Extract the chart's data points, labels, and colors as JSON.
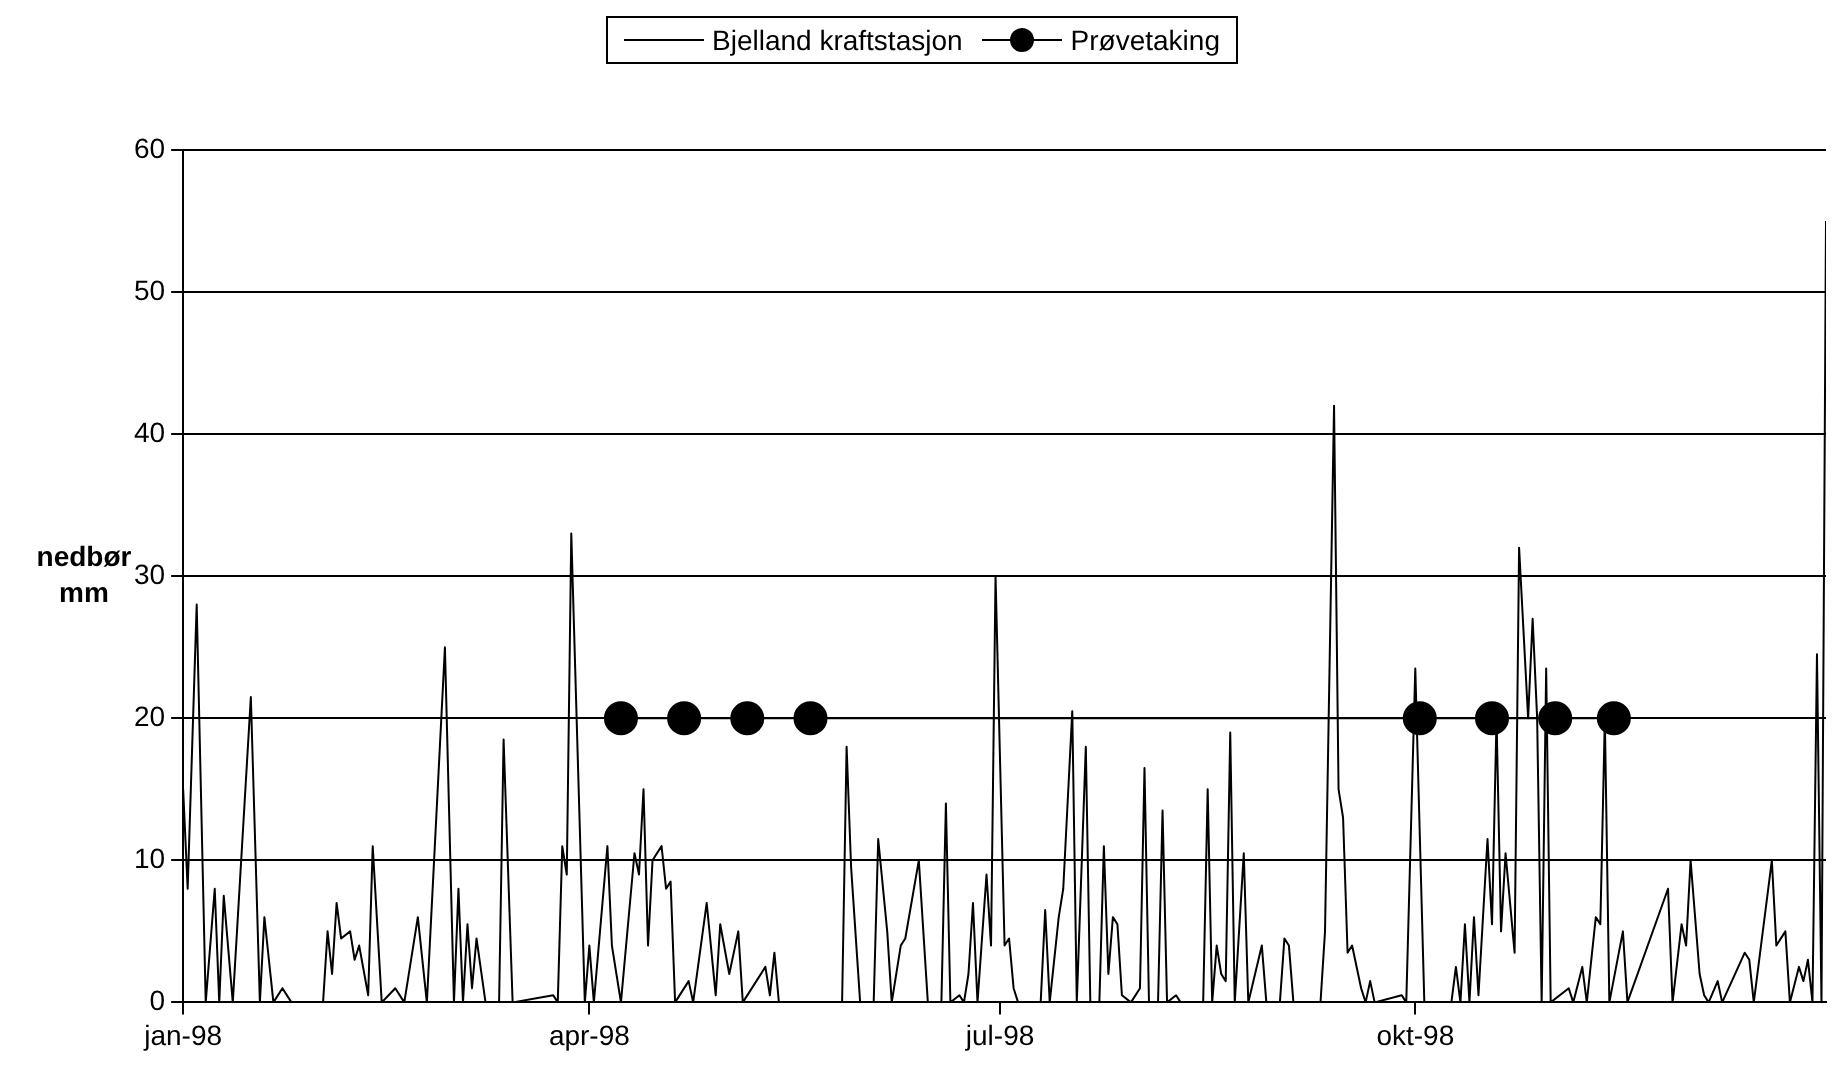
{
  "chart_data": {
    "type": "line",
    "ylabel": "nedbør mm",
    "xlim": [
      "1998-01-01",
      "1998-12-31"
    ],
    "xticks": [
      {
        "value": "1998-01-01",
        "label": "jan-98"
      },
      {
        "value": "1998-04-01",
        "label": "apr-98"
      },
      {
        "value": "1998-07-01",
        "label": "jul-98"
      },
      {
        "value": "1998-10-01",
        "label": "okt-98"
      }
    ],
    "ylim": [
      0,
      60
    ],
    "yticks": [
      0,
      10,
      20,
      30,
      40,
      50,
      60
    ],
    "grid": "y",
    "legend": "top",
    "series": [
      {
        "name": "Bjelland kraftstasjon",
        "color": "#000000",
        "marker": "none",
        "x": [
          "1998-01-01",
          "1998-01-02",
          "1998-01-04",
          "1998-01-06",
          "1998-01-08",
          "1998-01-09",
          "1998-01-10",
          "1998-01-12",
          "1998-01-16",
          "1998-01-18",
          "1998-01-19",
          "1998-01-21",
          "1998-01-23",
          "1998-01-25",
          "1998-02-01",
          "1998-02-02",
          "1998-02-03",
          "1998-02-04",
          "1998-02-05",
          "1998-02-07",
          "1998-02-08",
          "1998-02-09",
          "1998-02-11",
          "1998-02-12",
          "1998-02-14",
          "1998-02-17",
          "1998-02-19",
          "1998-02-22",
          "1998-02-24",
          "1998-02-28",
          "1998-03-02",
          "1998-03-03",
          "1998-03-04",
          "1998-03-05",
          "1998-03-06",
          "1998-03-07",
          "1998-03-09",
          "1998-03-12",
          "1998-03-13",
          "1998-03-15",
          "1998-03-24",
          "1998-03-25",
          "1998-03-26",
          "1998-03-27",
          "1998-03-28",
          "1998-03-31",
          "1998-04-01",
          "1998-04-02",
          "1998-04-05",
          "1998-04-06",
          "1998-04-07",
          "1998-04-08",
          "1998-04-11",
          "1998-04-12",
          "1998-04-13",
          "1998-04-14",
          "1998-04-15",
          "1998-04-17",
          "1998-04-18",
          "1998-04-19",
          "1998-04-20",
          "1998-04-23",
          "1998-04-24",
          "1998-04-27",
          "1998-04-29",
          "1998-04-30",
          "1998-05-02",
          "1998-05-04",
          "1998-05-05",
          "1998-05-10",
          "1998-05-11",
          "1998-05-12",
          "1998-05-13",
          "1998-05-27",
          "1998-05-28",
          "1998-05-29",
          "1998-05-31",
          "1998-06-03",
          "1998-06-04",
          "1998-06-06",
          "1998-06-07",
          "1998-06-09",
          "1998-06-10",
          "1998-06-13",
          "1998-06-15",
          "1998-06-18",
          "1998-06-19",
          "1998-06-20",
          "1998-06-22",
          "1998-06-23",
          "1998-06-24",
          "1998-06-25",
          "1998-06-26",
          "1998-06-28",
          "1998-06-29",
          "1998-06-30",
          "1998-07-02",
          "1998-07-03",
          "1998-07-04",
          "1998-07-05",
          "1998-07-10",
          "1998-07-11",
          "1998-07-12",
          "1998-07-14",
          "1998-07-15",
          "1998-07-17",
          "1998-07-18",
          "1998-07-20",
          "1998-07-21",
          "1998-07-23",
          "1998-07-24",
          "1998-07-25",
          "1998-07-26",
          "1998-07-27",
          "1998-07-28",
          "1998-07-30",
          "1998-08-01",
          "1998-08-02",
          "1998-08-03",
          "1998-08-05",
          "1998-08-06",
          "1998-08-07",
          "1998-08-09",
          "1998-08-10",
          "1998-08-15",
          "1998-08-16",
          "1998-08-17",
          "1998-08-18",
          "1998-08-19",
          "1998-08-20",
          "1998-08-21",
          "1998-08-22",
          "1998-08-24",
          "1998-08-25",
          "1998-08-28",
          "1998-08-29",
          "1998-09-01",
          "1998-09-02",
          "1998-09-03",
          "1998-09-04",
          "1998-09-10",
          "1998-09-11",
          "1998-09-13",
          "1998-09-14",
          "1998-09-15",
          "1998-09-16",
          "1998-09-17",
          "1998-09-19",
          "1998-09-20",
          "1998-09-21",
          "1998-09-22",
          "1998-09-28",
          "1998-09-29",
          "1998-10-01",
          "1998-10-03",
          "1998-10-09",
          "1998-10-10",
          "1998-10-11",
          "1998-10-12",
          "1998-10-13",
          "1998-10-14",
          "1998-10-15",
          "1998-10-17",
          "1998-10-18",
          "1998-10-19",
          "1998-10-20",
          "1998-10-21",
          "1998-10-23",
          "1998-10-24",
          "1998-10-26",
          "1998-10-27",
          "1998-10-28",
          "1998-10-29",
          "1998-10-30",
          "1998-10-31",
          "1998-11-04",
          "1998-11-05",
          "1998-11-07",
          "1998-11-08",
          "1998-11-10",
          "1998-11-11",
          "1998-11-12",
          "1998-11-13",
          "1998-11-16",
          "1998-11-17",
          "1998-11-26",
          "1998-11-27",
          "1998-11-29",
          "1998-11-30",
          "1998-12-01",
          "1998-12-03",
          "1998-12-04",
          "1998-12-05",
          "1998-12-07",
          "1998-12-08",
          "1998-12-13",
          "1998-12-14",
          "1998-12-15",
          "1998-12-19",
          "1998-12-20",
          "1998-12-22",
          "1998-12-23",
          "1998-12-25",
          "1998-12-26",
          "1998-12-27",
          "1998-12-28",
          "1998-12-29",
          "1998-12-30",
          "1998-12-31"
        ],
        "values": [
          15,
          8,
          28,
          0,
          8,
          0,
          7.5,
          0,
          21.5,
          0,
          6,
          0,
          1,
          0,
          0,
          5,
          2,
          7,
          4.5,
          5,
          3,
          4,
          0.5,
          11,
          0,
          1,
          0,
          6,
          0,
          25,
          0,
          8,
          0,
          5.5,
          1,
          4.5,
          0,
          0,
          18.5,
          0,
          0.5,
          0,
          11,
          9,
          33,
          0,
          4,
          0,
          11,
          4,
          2,
          0,
          10.5,
          9,
          15,
          4,
          10,
          11,
          8,
          8.5,
          0,
          1.5,
          0,
          7,
          0.5,
          5.5,
          2,
          5,
          0,
          2.5,
          0.5,
          3.5,
          0,
          0,
          18,
          9.5,
          0,
          0,
          11.5,
          5,
          0,
          4,
          4.5,
          10,
          0,
          0,
          14,
          0,
          0.5,
          0,
          2,
          7,
          0,
          9,
          4,
          30,
          4,
          4.5,
          1,
          0,
          0,
          6.5,
          0,
          6,
          8,
          20.5,
          0,
          18,
          0,
          0,
          11,
          2,
          6,
          5.5,
          0.5,
          0,
          1,
          16.5,
          0,
          0,
          13.5,
          0,
          0.5,
          0,
          0,
          15,
          0,
          4,
          2,
          1.5,
          19,
          0,
          10.5,
          0,
          4,
          0,
          0,
          4.5,
          4,
          0,
          0,
          5,
          42,
          15,
          13,
          3.5,
          4,
          1,
          0,
          1.5,
          0,
          0.5,
          0,
          23.5,
          0,
          0,
          2.5,
          0,
          5.5,
          0,
          6,
          0.5,
          11.5,
          5.5,
          20,
          5,
          10.5,
          3.5,
          32,
          20,
          27,
          20,
          0,
          23.5,
          0,
          1,
          0,
          2.5,
          0,
          6,
          5.5,
          20,
          0,
          5,
          0,
          8,
          0,
          5.5,
          4,
          10,
          2,
          0.5,
          0,
          1.5,
          0,
          3.5,
          3,
          0,
          10,
          4,
          5,
          0,
          2.5,
          1.5,
          3,
          0,
          24.5,
          0,
          55
        ]
      },
      {
        "name": "Prøvetaking",
        "color": "#000000",
        "marker": "circle",
        "x": [
          "1998-04-08",
          "1998-04-22",
          "1998-05-06",
          "1998-05-20",
          "1998-10-02",
          "1998-10-18",
          "1998-11-01",
          "1998-11-14"
        ],
        "values": [
          20,
          20,
          20,
          20,
          20,
          20,
          20,
          20
        ]
      }
    ]
  }
}
